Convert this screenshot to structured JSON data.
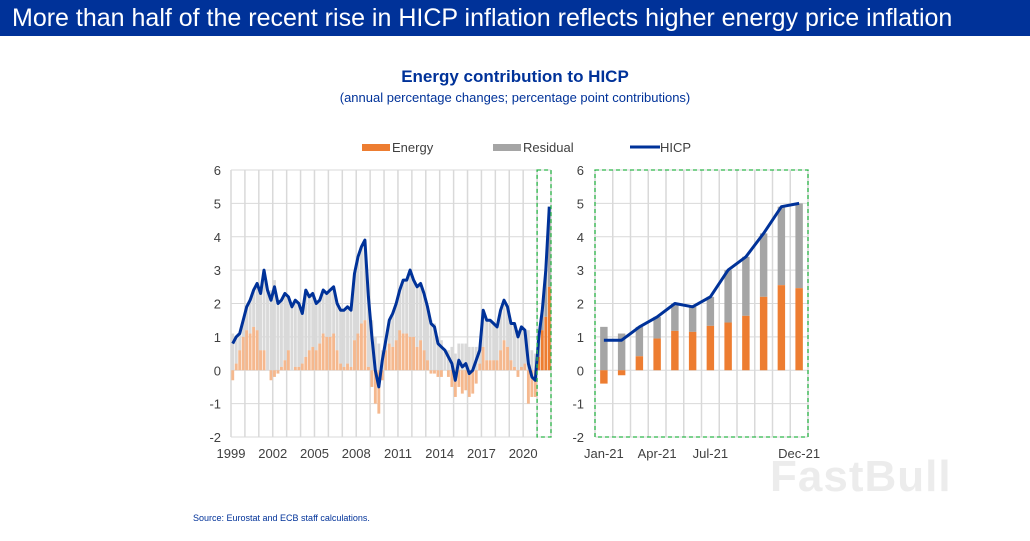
{
  "header": {
    "title": "More than half of the recent rise in HICP inflation reflects higher energy price inflation"
  },
  "chart_header": {
    "title": "Energy contribution to HICP",
    "subtitle": "(annual percentage changes; percentage point contributions)"
  },
  "source": "Source: Eurostat and ECB staff calculations.",
  "watermark": "FastBull",
  "colors": {
    "energy": "#ED7D31",
    "energy_light": "#F5B88E",
    "residual": "#A5A5A5",
    "residual_light": "#D9D9D9",
    "hicp": "#003299",
    "highlight_box": "#2DB84B",
    "title_bar": "#003299"
  },
  "legend": {
    "placement": "top",
    "items": [
      {
        "name": "Energy",
        "kind": "bar"
      },
      {
        "name": "Residual",
        "kind": "bar"
      },
      {
        "name": "HICP",
        "kind": "line"
      }
    ]
  },
  "chart_data": [
    {
      "type": "bar",
      "stacked": true,
      "ylim": [
        -2,
        6
      ],
      "yticks": [
        "6",
        "5",
        "4",
        "3",
        "2",
        "1",
        "0",
        "-1",
        "-2"
      ],
      "xticks": [
        "1999",
        "2002",
        "2005",
        "2008",
        "2011",
        "2014",
        "2017",
        "2020"
      ],
      "grid": true,
      "highlight": "2021",
      "x_start": "1999-Q1",
      "frequency": "quarterly",
      "hicp": [
        0.8,
        1.0,
        1.1,
        1.5,
        1.9,
        2.1,
        2.4,
        2.6,
        2.3,
        3.0,
        2.4,
        2.1,
        2.5,
        2.0,
        2.1,
        2.3,
        2.2,
        1.9,
        2.1,
        2.0,
        1.7,
        2.4,
        2.2,
        2.3,
        2.0,
        2.1,
        2.4,
        2.3,
        2.4,
        2.5,
        2.0,
        1.8,
        1.8,
        1.9,
        1.8,
        2.9,
        3.4,
        3.7,
        3.9,
        2.2,
        1.0,
        0.0,
        -0.5,
        0.3,
        0.9,
        1.5,
        1.7,
        2.0,
        2.4,
        2.7,
        2.7,
        3.0,
        2.7,
        2.5,
        2.6,
        2.3,
        1.9,
        1.4,
        1.3,
        0.8,
        0.7,
        0.6,
        0.4,
        0.2,
        -0.3,
        0.3,
        0.1,
        0.2,
        -0.1,
        0.0,
        0.3,
        0.6,
        1.8,
        1.5,
        1.5,
        1.4,
        1.3,
        1.8,
        2.1,
        1.9,
        1.4,
        1.4,
        1.0,
        1.3,
        1.2,
        0.2,
        -0.2,
        -0.3,
        1.0,
        1.8,
        3.0,
        4.9
      ],
      "energy": [
        -0.3,
        0.2,
        0.6,
        1.0,
        1.2,
        1.1,
        1.3,
        1.2,
        0.6,
        0.6,
        0.0,
        -0.3,
        -0.2,
        -0.1,
        0.1,
        0.3,
        0.6,
        0.0,
        0.1,
        0.1,
        0.2,
        0.4,
        0.6,
        0.7,
        0.6,
        0.8,
        1.1,
        1.0,
        1.0,
        1.1,
        0.6,
        0.2,
        0.1,
        0.2,
        0.1,
        0.9,
        1.1,
        1.4,
        1.5,
        0.1,
        -0.5,
        -1.0,
        -1.3,
        -0.3,
        0.6,
        0.8,
        0.7,
        0.9,
        1.2,
        1.1,
        1.1,
        1.0,
        1.0,
        0.7,
        0.9,
        0.6,
        0.3,
        -0.1,
        -0.1,
        -0.2,
        -0.2,
        0.0,
        -0.2,
        -0.5,
        -0.8,
        -0.5,
        -0.7,
        -0.6,
        -0.8,
        -0.7,
        -0.4,
        0.2,
        0.7,
        0.3,
        0.3,
        0.3,
        0.3,
        0.6,
        0.9,
        0.7,
        0.3,
        0.1,
        -0.2,
        0.1,
        0.2,
        -1.0,
        -0.8,
        -0.8,
        0.4,
        1.2,
        1.6,
        2.5
      ]
    },
    {
      "type": "bar",
      "stacked": true,
      "ylim": [
        -2,
        6
      ],
      "yticks": [
        "6",
        "5",
        "4",
        "3",
        "2",
        "1",
        "0",
        "-1",
        "-2"
      ],
      "categories": [
        "Jan-21",
        "Feb-21",
        "Mar-21",
        "Apr-21",
        "May-21",
        "Jun-21",
        "Jul-21",
        "Aug-21",
        "Sep-21",
        "Oct-21",
        "Nov-21",
        "Dec-21"
      ],
      "xtick_labels": [
        "Jan-21",
        "Apr-21",
        "Jul-21",
        "Dec-21"
      ],
      "grid": true,
      "energy": [
        -0.4,
        -0.15,
        0.42,
        0.95,
        1.18,
        1.15,
        1.33,
        1.43,
        1.63,
        2.2,
        2.55,
        2.46
      ],
      "residual": [
        1.3,
        1.1,
        0.88,
        0.65,
        0.82,
        0.75,
        0.87,
        1.57,
        1.77,
        1.9,
        2.35,
        2.54
      ],
      "hicp": [
        0.9,
        0.9,
        1.3,
        1.6,
        2.0,
        1.9,
        2.2,
        3.0,
        3.4,
        4.1,
        4.9,
        5.0
      ]
    }
  ]
}
